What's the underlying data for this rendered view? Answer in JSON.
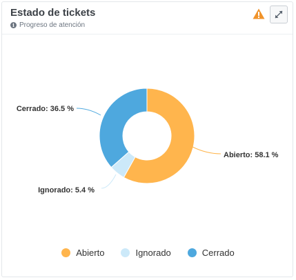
{
  "header": {
    "title": "Estado de tickets",
    "subtitle": "Progreso de atención"
  },
  "icons": {
    "info": "info-circle-icon",
    "warning": "warning-triangle-icon",
    "expand": "expand-arrows-icon"
  },
  "colors": {
    "Abierto": "#ffb54d",
    "Ignorado": "#cce9f9",
    "Cerrado": "#4ea8de",
    "warning": "#f0932b"
  },
  "chart_data": {
    "type": "pie",
    "donut": true,
    "slices": [
      {
        "label": "Abierto",
        "value": 58.1,
        "data_label": "Abierto: 58.1 %"
      },
      {
        "label": "Ignorado",
        "value": 5.4,
        "data_label": "Ignorado: 5.4 %"
      },
      {
        "label": "Cerrado",
        "value": 36.5,
        "data_label": "Cerrado: 36.5 %"
      }
    ],
    "legend": [
      "Abierto",
      "Ignorado",
      "Cerrado"
    ],
    "legend_position": "bottom"
  }
}
